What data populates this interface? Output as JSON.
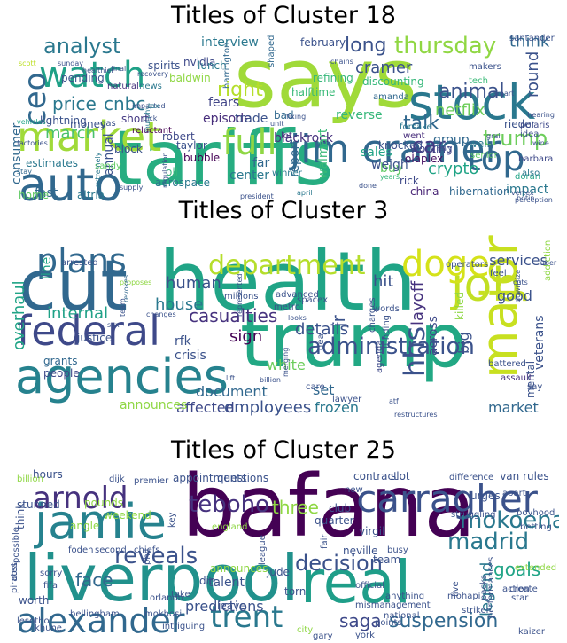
{
  "chart_data": [
    {
      "type": "wordcloud",
      "title": "Titles of Cluster 18",
      "words": [
        "says",
        "tariffs",
        "jim cramer",
        "auto",
        "stock",
        "market",
        "watch",
        "ceo",
        "full",
        "top",
        "analyst",
        "right",
        "thursday",
        "cnbc",
        "price",
        "march",
        "trump",
        "talk",
        "car",
        "interview",
        "episode",
        "long",
        "animal",
        "crypto",
        "netflix",
        "cramer",
        "round",
        "think",
        "fears",
        "trade",
        "blackrock",
        "consumer",
        "annual",
        "nvidia",
        "report",
        "far",
        "center",
        "walmart",
        "sales",
        "buy",
        "china",
        "impact",
        "fast",
        "altria",
        "home",
        "february",
        "lunch",
        "spirits",
        "pending",
        "natural",
        "news",
        "bubble",
        "block",
        "sandy",
        "oil",
        "aerospace",
        "estimates",
        "lightning",
        "weigh",
        "group",
        "knocked",
        "went",
        "olaplex",
        "working",
        "reverse",
        "halftime",
        "refining",
        "discounting",
        "forsake",
        "barbara",
        "doran",
        "hibernation",
        "rick",
        "also",
        "tech",
        "amanda",
        "bad",
        "lot",
        "winner",
        "well",
        "shaped",
        "santander",
        "makers",
        "rieder",
        "polaris",
        "senior",
        "idea",
        "extremely",
        "supply",
        "regulation",
        "president",
        "april",
        "botin",
        "robert",
        "taylor",
        "baldwin",
        "murphy",
        "reluctant",
        "short",
        "harrington",
        "gas",
        "money",
        "scott",
        "sunday",
        "final",
        "recovery",
        "healthier",
        "vehicles",
        "factories",
        "stay",
        "impacted",
        "pick",
        "tax",
        "fixing",
        "unit",
        "chains",
        "rally",
        "grail",
        "years",
        "done",
        "smart",
        "vertex",
        "hearing",
        "wine",
        "perception"
      ]
    },
    {
      "type": "wordcloud",
      "title": "Titles of Cluster 3",
      "words": [
        "health",
        "trump",
        "cut",
        "agencies",
        "federal",
        "job",
        "department",
        "doge",
        "major",
        "plans",
        "administration",
        "hhs",
        "casualties",
        "human",
        "house",
        "internal",
        "details",
        "overhaul",
        "hit",
        "services",
        "employees",
        "frozen",
        "affected",
        "announces",
        "document",
        "crisis",
        "white",
        "sign",
        "rfk",
        "big",
        "set",
        "good",
        "market",
        "veterans",
        "mental",
        "across",
        "layoff",
        "killed",
        "jr",
        "line",
        "justice",
        "grants",
        "people",
        "metro",
        "spacex",
        "advanced",
        "millions",
        "arrested",
        "operators",
        "feel",
        "addiction",
        "downsize",
        "words",
        "assault",
        "say",
        "battered",
        "charges",
        "agenda",
        "funding",
        "dea",
        "care",
        "lawyer",
        "restructures",
        "atf",
        "billion",
        "proposes",
        "revokes",
        "changes",
        "team",
        "sex",
        "represented",
        "looks",
        "merging",
        "lift",
        "cuts",
        "uber"
      ]
    },
    {
      "type": "wordcloud",
      "title": "Titles of Cluster 25",
      "words": [
        "bafana",
        "liverpool",
        "real",
        "jamie",
        "carragher",
        "alexander",
        "trent",
        "arnold",
        "madrid",
        "decision",
        "reveals",
        "teboho",
        "mokoena",
        "suspension",
        "saga",
        "goals",
        "legend",
        "three",
        "face",
        "club",
        "quarter",
        "virgil",
        "neville",
        "talent",
        "predictions",
        "hours",
        "appointments",
        "questions",
        "contract",
        "slot",
        "difference",
        "van rules",
        "pounds",
        "weekend",
        "angle",
        "england",
        "die",
        "jude",
        "torn",
        "team",
        "billion",
        "stunned",
        "think",
        "foden",
        "second",
        "chiefs",
        "cost",
        "sorry",
        "fifa",
        "pirates",
        "worth",
        "bellingham",
        "orlando",
        "lesotho",
        "khune",
        "mokhosi",
        "intriguing",
        "phil",
        "take",
        "leave",
        "announces",
        "points",
        "city",
        "gary",
        "york",
        "national",
        "kaizer",
        "action",
        "create",
        "star",
        "extended",
        "betting",
        "boyhood",
        "struggling",
        "urges",
        "striker",
        "mohapi",
        "anything",
        "mismanagement",
        "official",
        "busy",
        "key",
        "apart",
        "packs",
        "new",
        "fair",
        "live",
        "performances",
        "possible",
        "dijk",
        "premier",
        "league",
        "matchday",
        "disappointed",
        "montpellier",
        "half",
        "dmv",
        "comments",
        "leganes",
        "pun",
        "shy",
        "fa"
      ]
    }
  ]
}
